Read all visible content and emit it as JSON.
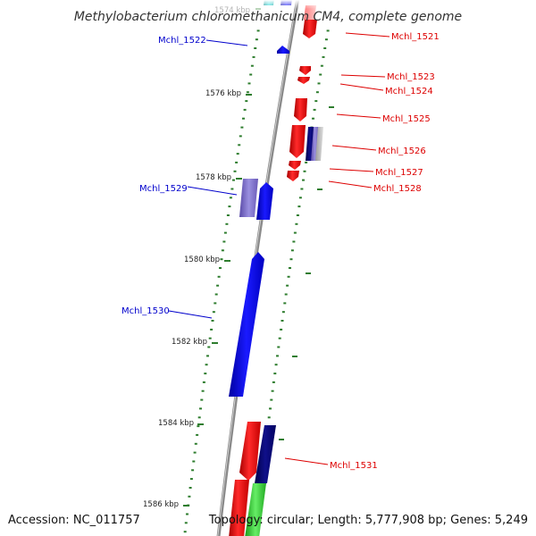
{
  "title": "Methylobacterium chloromethanicum CM4, complete genome",
  "footer": {
    "accession": "Accession: NC_011757",
    "topology": "Topology: circular; Length: 5,777,908 bp; Genes: 5,249"
  },
  "colors": {
    "forward_label": "#0000cc",
    "reverse_label": "#dd0000",
    "backbone": "#8a8a8a",
    "tick": "#2e7d2e"
  },
  "coordinates": [
    {
      "label": "1574 kbp",
      "faded": true
    },
    {
      "label": "1576 kbp",
      "faded": false
    },
    {
      "label": "1578 kbp",
      "faded": false
    },
    {
      "label": "1580 kbp",
      "faded": false
    },
    {
      "label": "1582 kbp",
      "faded": false
    },
    {
      "label": "1584 kbp",
      "faded": false
    },
    {
      "label": "1586 kbp",
      "faded": false
    }
  ],
  "gene_labels": [
    {
      "id": "g1521",
      "text": "Mchl_1521",
      "strand": "reverse"
    },
    {
      "id": "g1522",
      "text": "Mchl_1522",
      "strand": "forward"
    },
    {
      "id": "g1523",
      "text": "Mchl_1523",
      "strand": "reverse"
    },
    {
      "id": "g1524",
      "text": "Mchl_1524",
      "strand": "reverse"
    },
    {
      "id": "g1525",
      "text": "Mchl_1525",
      "strand": "reverse"
    },
    {
      "id": "g1526",
      "text": "Mchl_1526",
      "strand": "reverse"
    },
    {
      "id": "g1527",
      "text": "Mchl_1527",
      "strand": "reverse"
    },
    {
      "id": "g1528",
      "text": "Mchl_1528",
      "strand": "reverse"
    },
    {
      "id": "g1529",
      "text": "Mchl_1529",
      "strand": "forward"
    },
    {
      "id": "g1530",
      "text": "Mchl_1530",
      "strand": "forward"
    },
    {
      "id": "g1531",
      "text": "Mchl_1531",
      "strand": "reverse"
    }
  ]
}
